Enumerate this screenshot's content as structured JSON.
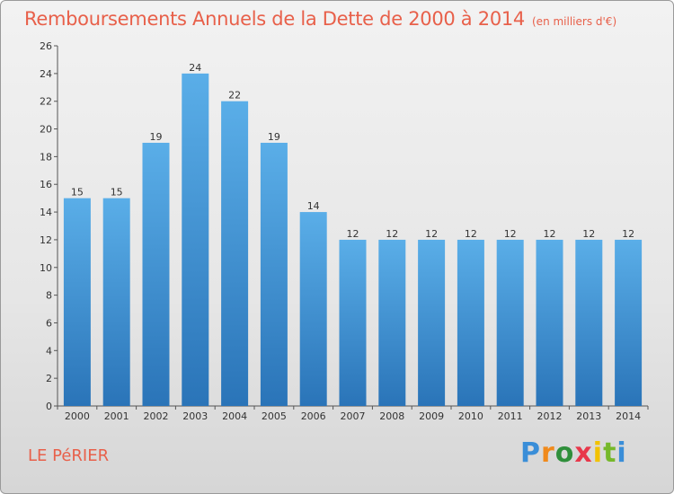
{
  "title": "Remboursements Annuels de la Dette de 2000 à 2014",
  "unit": "(en milliers d'€)",
  "city": "LE PéRIER",
  "logo": [
    "P",
    "r",
    "o",
    "x",
    "i",
    "t",
    "i"
  ],
  "colors": {
    "title": "#e8604a",
    "bar_top": "#5aaee8",
    "bar_bottom": "#2a74b8",
    "background": "#e8e8e8"
  },
  "chart_data": {
    "type": "bar",
    "categories": [
      "2000",
      "2001",
      "2002",
      "2003",
      "2004",
      "2005",
      "2006",
      "2007",
      "2008",
      "2009",
      "2010",
      "2011",
      "2012",
      "2013",
      "2014"
    ],
    "values": [
      15,
      15,
      19,
      24,
      22,
      19,
      14,
      12,
      12,
      12,
      12,
      12,
      12,
      12,
      12
    ],
    "ylim": [
      0,
      26
    ],
    "yticks": [
      0,
      2,
      4,
      6,
      8,
      10,
      12,
      14,
      16,
      18,
      20,
      22,
      24,
      26
    ],
    "grid": false,
    "data_labels": true
  }
}
